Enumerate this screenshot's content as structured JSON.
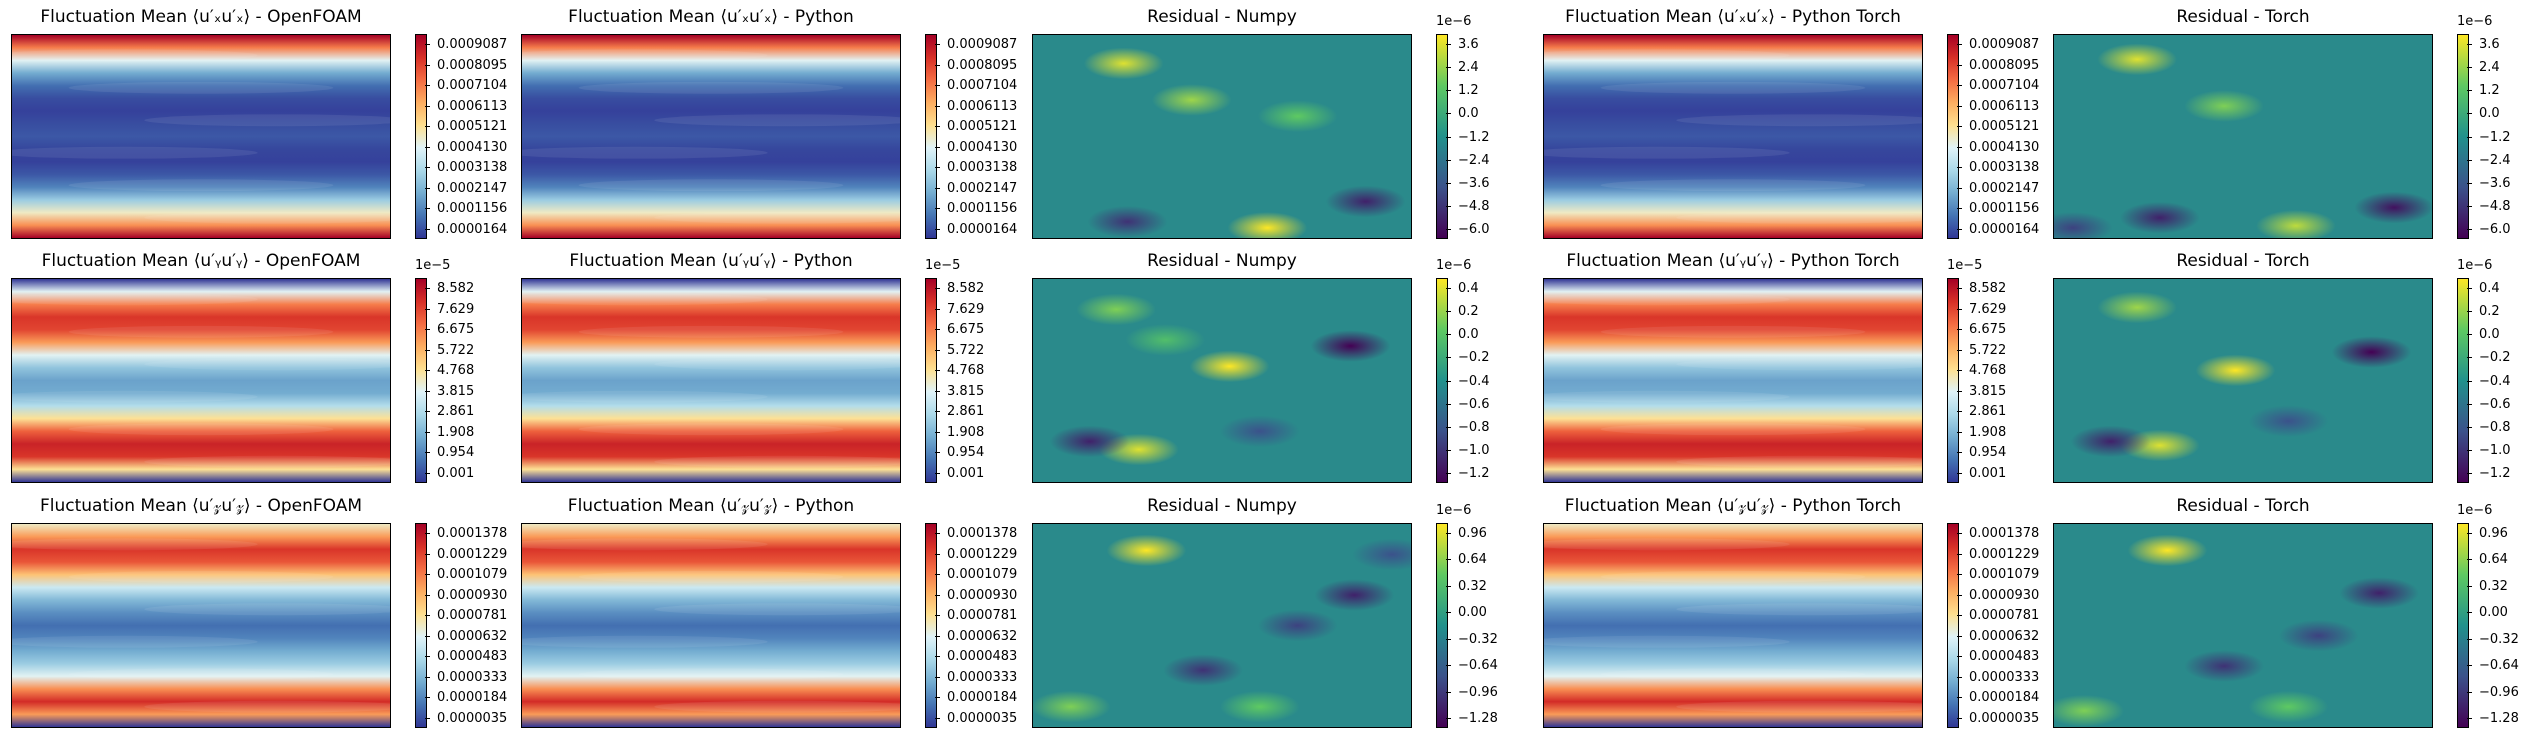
{
  "colors": {
    "rdylbu": [
      "#313695",
      "#4575b4",
      "#74add1",
      "#abd9e9",
      "#e0f3f8",
      "#fee090",
      "#fdae61",
      "#f46d43",
      "#d73027",
      "#a50026"
    ],
    "viridis": [
      "#440154",
      "#3b528b",
      "#21918c",
      "#5ec962",
      "#fde725"
    ],
    "residual_base": "#2a8a8b"
  },
  "chart_data": [
    {
      "type": "heatmap",
      "row": 0,
      "col": 0,
      "title": "Fluctuation Mean ⟨u′ₓu′ₓ⟩ - OpenFOAM",
      "colormap": "RdYlBu_r",
      "multiplier": "",
      "ticks": [
        "0.0009087",
        "0.0008095",
        "0.0007104",
        "0.0006113",
        "0.0005121",
        "0.0004130",
        "0.0003138",
        "0.0002147",
        "0.0001156",
        "0.0000164"
      ],
      "profile": [
        1.0,
        0.75,
        0.45,
        0.22,
        0.1,
        0.04,
        0.02,
        0.04,
        0.06,
        0.03,
        0.02,
        0.06,
        0.14,
        0.3,
        0.5,
        0.72,
        1.0
      ]
    },
    {
      "type": "heatmap",
      "row": 0,
      "col": 1,
      "title": "Fluctuation Mean ⟨u′ₓu′ₓ⟩ - Python",
      "colormap": "RdYlBu_r",
      "multiplier": "",
      "ticks": [
        "0.0009087",
        "0.0008095",
        "0.0007104",
        "0.0006113",
        "0.0005121",
        "0.0004130",
        "0.0003138",
        "0.0002147",
        "0.0001156",
        "0.0000164"
      ],
      "profile": [
        1.0,
        0.75,
        0.45,
        0.22,
        0.1,
        0.04,
        0.02,
        0.04,
        0.06,
        0.03,
        0.02,
        0.06,
        0.14,
        0.3,
        0.5,
        0.72,
        1.0
      ]
    },
    {
      "type": "heatmap",
      "row": 0,
      "col": 2,
      "title": "Residual - Numpy",
      "colormap": "viridis",
      "multiplier": "1e−6",
      "ticks": [
        "3.6",
        "2.4",
        "1.2",
        "0.0",
        "−1.2",
        "−2.4",
        "−3.6",
        "−4.8",
        "−6.0"
      ],
      "blobs": [
        {
          "x": 0.24,
          "y": 0.14,
          "v": 0.9
        },
        {
          "x": 0.42,
          "y": 0.32,
          "v": 0.7
        },
        {
          "x": 0.25,
          "y": 0.92,
          "v": -0.7
        },
        {
          "x": 0.62,
          "y": 0.95,
          "v": 1.0
        },
        {
          "x": 0.88,
          "y": 0.82,
          "v": -0.8
        },
        {
          "x": 0.7,
          "y": 0.4,
          "v": 0.5
        }
      ]
    },
    {
      "type": "heatmap",
      "row": 0,
      "col": 3,
      "title": "Fluctuation Mean ⟨u′ₓu′ₓ⟩ - Python Torch",
      "colormap": "RdYlBu_r",
      "multiplier": "",
      "ticks": [
        "0.0009087",
        "0.0008095",
        "0.0007104",
        "0.0006113",
        "0.0005121",
        "0.0004130",
        "0.0003138",
        "0.0002147",
        "0.0001156",
        "0.0000164"
      ],
      "profile": [
        1.0,
        0.75,
        0.45,
        0.22,
        0.1,
        0.04,
        0.02,
        0.04,
        0.06,
        0.03,
        0.02,
        0.06,
        0.14,
        0.3,
        0.5,
        0.72,
        1.0
      ]
    },
    {
      "type": "heatmap",
      "row": 0,
      "col": 4,
      "title": "Residual - Torch",
      "colormap": "viridis",
      "multiplier": "1e−6",
      "ticks": [
        "3.6",
        "2.4",
        "1.2",
        "0.0",
        "−1.2",
        "−2.4",
        "−3.6",
        "−4.8",
        "−6.0"
      ],
      "blobs": [
        {
          "x": 0.22,
          "y": 0.12,
          "v": 0.9
        },
        {
          "x": 0.45,
          "y": 0.35,
          "v": 0.6
        },
        {
          "x": 0.28,
          "y": 0.9,
          "v": -0.8
        },
        {
          "x": 0.64,
          "y": 0.94,
          "v": 0.8
        },
        {
          "x": 0.9,
          "y": 0.85,
          "v": -0.9
        },
        {
          "x": 0.05,
          "y": 0.95,
          "v": -0.6
        }
      ]
    },
    {
      "type": "heatmap",
      "row": 1,
      "col": 0,
      "title": "Fluctuation Mean ⟨u′ᵧu′ᵧ⟩ - OpenFOAM",
      "colormap": "RdYlBu_r",
      "multiplier": "1e−5",
      "ticks": [
        "8.582",
        "7.629",
        "6.675",
        "5.722",
        "4.768",
        "3.815",
        "2.861",
        "1.908",
        "0.954",
        "0.001"
      ],
      "profile": [
        0.0,
        0.45,
        0.75,
        0.88,
        0.85,
        0.7,
        0.45,
        0.28,
        0.2,
        0.22,
        0.35,
        0.55,
        0.8,
        0.92,
        0.88,
        0.55,
        0.0
      ]
    },
    {
      "type": "heatmap",
      "row": 1,
      "col": 1,
      "title": "Fluctuation Mean ⟨u′ᵧu′ᵧ⟩ - Python",
      "colormap": "RdYlBu_r",
      "multiplier": "1e−5",
      "ticks": [
        "8.582",
        "7.629",
        "6.675",
        "5.722",
        "4.768",
        "3.815",
        "2.861",
        "1.908",
        "0.954",
        "0.001"
      ],
      "profile": [
        0.0,
        0.45,
        0.75,
        0.88,
        0.85,
        0.7,
        0.45,
        0.28,
        0.2,
        0.22,
        0.35,
        0.55,
        0.8,
        0.92,
        0.88,
        0.55,
        0.0
      ]
    },
    {
      "type": "heatmap",
      "row": 1,
      "col": 2,
      "title": "Residual - Numpy",
      "colormap": "viridis",
      "multiplier": "1e−6",
      "ticks": [
        "0.4",
        "0.2",
        "0.0",
        "−0.2",
        "−0.4",
        "−0.6",
        "−0.8",
        "−1.0",
        "−1.2"
      ],
      "blobs": [
        {
          "x": 0.52,
          "y": 0.43,
          "v": 1.0
        },
        {
          "x": 0.84,
          "y": 0.33,
          "v": -1.0
        },
        {
          "x": 0.28,
          "y": 0.84,
          "v": 0.9
        },
        {
          "x": 0.22,
          "y": 0.15,
          "v": 0.6
        },
        {
          "x": 0.15,
          "y": 0.8,
          "v": -0.8
        },
        {
          "x": 0.6,
          "y": 0.75,
          "v": -0.5
        },
        {
          "x": 0.35,
          "y": 0.3,
          "v": 0.4
        }
      ]
    },
    {
      "type": "heatmap",
      "row": 1,
      "col": 3,
      "title": "Fluctuation Mean ⟨u′ᵧu′ᵧ⟩ - Python Torch",
      "colormap": "RdYlBu_r",
      "multiplier": "1e−5",
      "ticks": [
        "8.582",
        "7.629",
        "6.675",
        "5.722",
        "4.768",
        "3.815",
        "2.861",
        "1.908",
        "0.954",
        "0.001"
      ],
      "profile": [
        0.0,
        0.45,
        0.75,
        0.88,
        0.85,
        0.7,
        0.45,
        0.28,
        0.2,
        0.22,
        0.35,
        0.55,
        0.8,
        0.92,
        0.88,
        0.55,
        0.0
      ]
    },
    {
      "type": "heatmap",
      "row": 1,
      "col": 4,
      "title": "Residual - Torch",
      "colormap": "viridis",
      "multiplier": "1e−6",
      "ticks": [
        "0.4",
        "0.2",
        "0.0",
        "−0.2",
        "−0.4",
        "−0.6",
        "−0.8",
        "−1.0",
        "−1.2"
      ],
      "blobs": [
        {
          "x": 0.48,
          "y": 0.45,
          "v": 1.0
        },
        {
          "x": 0.84,
          "y": 0.36,
          "v": -1.0
        },
        {
          "x": 0.28,
          "y": 0.82,
          "v": 0.9
        },
        {
          "x": 0.22,
          "y": 0.14,
          "v": 0.7
        },
        {
          "x": 0.15,
          "y": 0.8,
          "v": -0.8
        },
        {
          "x": 0.62,
          "y": 0.7,
          "v": -0.5
        }
      ]
    },
    {
      "type": "heatmap",
      "row": 2,
      "col": 0,
      "title": "Fluctuation Mean ⟨u′𝓏u′𝓏⟩ - OpenFOAM",
      "colormap": "RdYlBu_r",
      "multiplier": "",
      "ticks": [
        "0.0001378",
        "0.0001229",
        "0.0001079",
        "0.0000930",
        "0.0000781",
        "0.0000632",
        "0.0000483",
        "0.0000333",
        "0.0000184",
        "0.0000035"
      ],
      "profile": [
        0.5,
        0.7,
        0.88,
        0.82,
        0.62,
        0.4,
        0.25,
        0.16,
        0.1,
        0.14,
        0.22,
        0.3,
        0.45,
        0.72,
        0.9,
        0.7,
        0.0
      ]
    },
    {
      "type": "heatmap",
      "row": 2,
      "col": 1,
      "title": "Fluctuation Mean ⟨u′𝓏u′𝓏⟩ - Python",
      "colormap": "RdYlBu_r",
      "multiplier": "",
      "ticks": [
        "0.0001378",
        "0.0001229",
        "0.0001079",
        "0.0000930",
        "0.0000781",
        "0.0000632",
        "0.0000483",
        "0.0000333",
        "0.0000184",
        "0.0000035"
      ],
      "profile": [
        0.5,
        0.7,
        0.88,
        0.82,
        0.62,
        0.4,
        0.25,
        0.16,
        0.1,
        0.14,
        0.22,
        0.3,
        0.45,
        0.72,
        0.9,
        0.7,
        0.0
      ]
    },
    {
      "type": "heatmap",
      "row": 2,
      "col": 2,
      "title": "Residual - Numpy",
      "colormap": "viridis",
      "multiplier": "1e−6",
      "ticks": [
        "0.96",
        "0.64",
        "0.32",
        "0.00",
        "−0.32",
        "−0.64",
        "−0.96",
        "−1.28"
      ],
      "blobs": [
        {
          "x": 0.3,
          "y": 0.13,
          "v": 1.0
        },
        {
          "x": 0.85,
          "y": 0.35,
          "v": -0.8
        },
        {
          "x": 0.7,
          "y": 0.5,
          "v": -0.6
        },
        {
          "x": 0.45,
          "y": 0.72,
          "v": -0.7
        },
        {
          "x": 0.1,
          "y": 0.9,
          "v": 0.6
        },
        {
          "x": 0.6,
          "y": 0.9,
          "v": 0.5
        },
        {
          "x": 0.95,
          "y": 0.15,
          "v": -0.5
        }
      ]
    },
    {
      "type": "heatmap",
      "row": 2,
      "col": 3,
      "title": "Fluctuation Mean ⟨u′𝓏u′𝓏⟩ - Python Torch",
      "colormap": "RdYlBu_r",
      "multiplier": "",
      "ticks": [
        "0.0001378",
        "0.0001229",
        "0.0001079",
        "0.0000930",
        "0.0000781",
        "0.0000632",
        "0.0000483",
        "0.0000333",
        "0.0000184",
        "0.0000035"
      ],
      "profile": [
        0.5,
        0.7,
        0.88,
        0.82,
        0.62,
        0.4,
        0.25,
        0.16,
        0.1,
        0.14,
        0.22,
        0.3,
        0.45,
        0.72,
        0.9,
        0.7,
        0.0
      ]
    },
    {
      "type": "heatmap",
      "row": 2,
      "col": 4,
      "title": "Residual - Torch",
      "colormap": "viridis",
      "multiplier": "1e−6",
      "ticks": [
        "0.96",
        "0.64",
        "0.32",
        "0.00",
        "−0.32",
        "−0.64",
        "−0.96",
        "−1.28"
      ],
      "blobs": [
        {
          "x": 0.3,
          "y": 0.13,
          "v": 1.0
        },
        {
          "x": 0.86,
          "y": 0.34,
          "v": -0.8
        },
        {
          "x": 0.7,
          "y": 0.55,
          "v": -0.6
        },
        {
          "x": 0.45,
          "y": 0.7,
          "v": -0.7
        },
        {
          "x": 0.08,
          "y": 0.92,
          "v": 0.6
        },
        {
          "x": 0.62,
          "y": 0.9,
          "v": 0.5
        }
      ]
    }
  ]
}
